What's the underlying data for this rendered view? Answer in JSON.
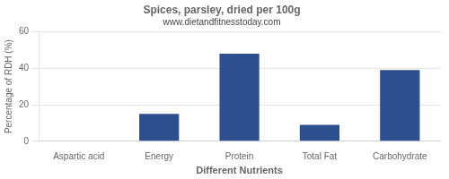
{
  "chart_data": {
    "type": "bar",
    "title": "Spices, parsley, dried per 100g",
    "subtitle": "www.dietandfitnesstoday.com",
    "xlabel": "Different Nutrients",
    "ylabel": "Percentage of RDH (%)",
    "categories": [
      "Aspartic acid",
      "Energy",
      "Protein",
      "Total Fat",
      "Carbohydrate"
    ],
    "values": [
      0,
      15,
      48,
      9,
      39
    ],
    "color": "#2e4f8f",
    "ylim": [
      0,
      60
    ],
    "yticks": [
      0,
      20,
      40,
      60
    ],
    "grid": true
  }
}
